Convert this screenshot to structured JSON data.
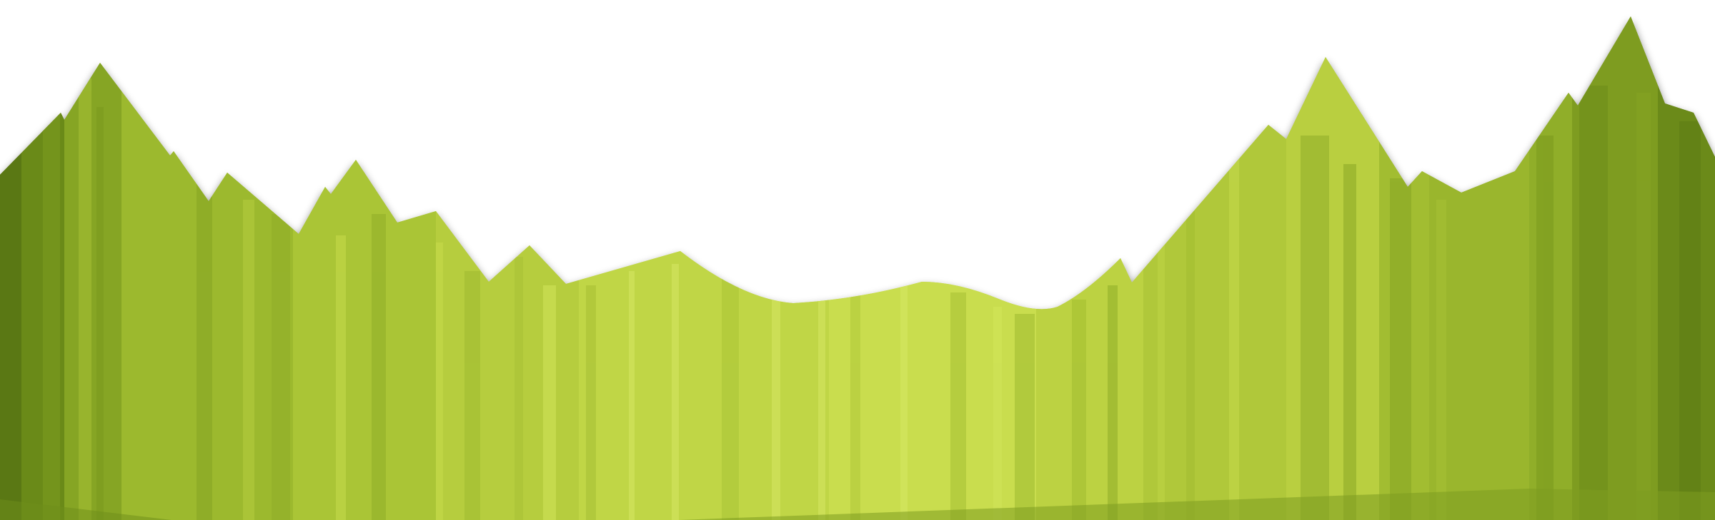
{
  "scene": {
    "subject": "stylized-forest-mountain-silhouette",
    "colors": {
      "background": "#ffffff",
      "darkest": "#5c7a14",
      "dark": "#7a9a1e",
      "mid": "#95b22b",
      "light": "#b2c93b",
      "lightest": "#c8dd4c",
      "highlight": "#d6e864",
      "shadow": "#3a4a10"
    }
  }
}
